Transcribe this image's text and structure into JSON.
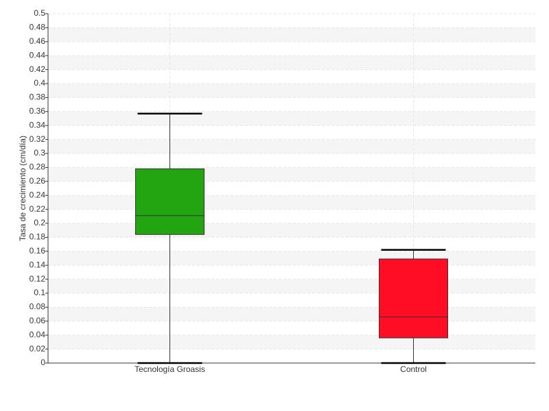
{
  "chart_data": {
    "type": "box",
    "y_label": "Tasa de crecimiento (cm/día)",
    "categories": [
      "Tecnología Groasis",
      "Control"
    ],
    "colors": [
      "#22a511",
      "#ff0c25"
    ],
    "boxes": [
      {
        "min": 0,
        "q1": 0.184,
        "median": 0.211,
        "q3": 0.278,
        "max": 0.357
      },
      {
        "min": 0,
        "q1": 0.036,
        "median": 0.066,
        "q3": 0.149,
        "max": 0.162
      }
    ],
    "ylim": [
      0,
      0.5
    ],
    "yticks": [
      0,
      0.02,
      0.04,
      0.06,
      0.08,
      0.1,
      0.12,
      0.14,
      0.16,
      0.18,
      0.2,
      0.22,
      0.24,
      0.26,
      0.28,
      0.3,
      0.32,
      0.34,
      0.36,
      0.38,
      0.4,
      0.42,
      0.44,
      0.46,
      0.48,
      0.5
    ],
    "grid": true
  }
}
